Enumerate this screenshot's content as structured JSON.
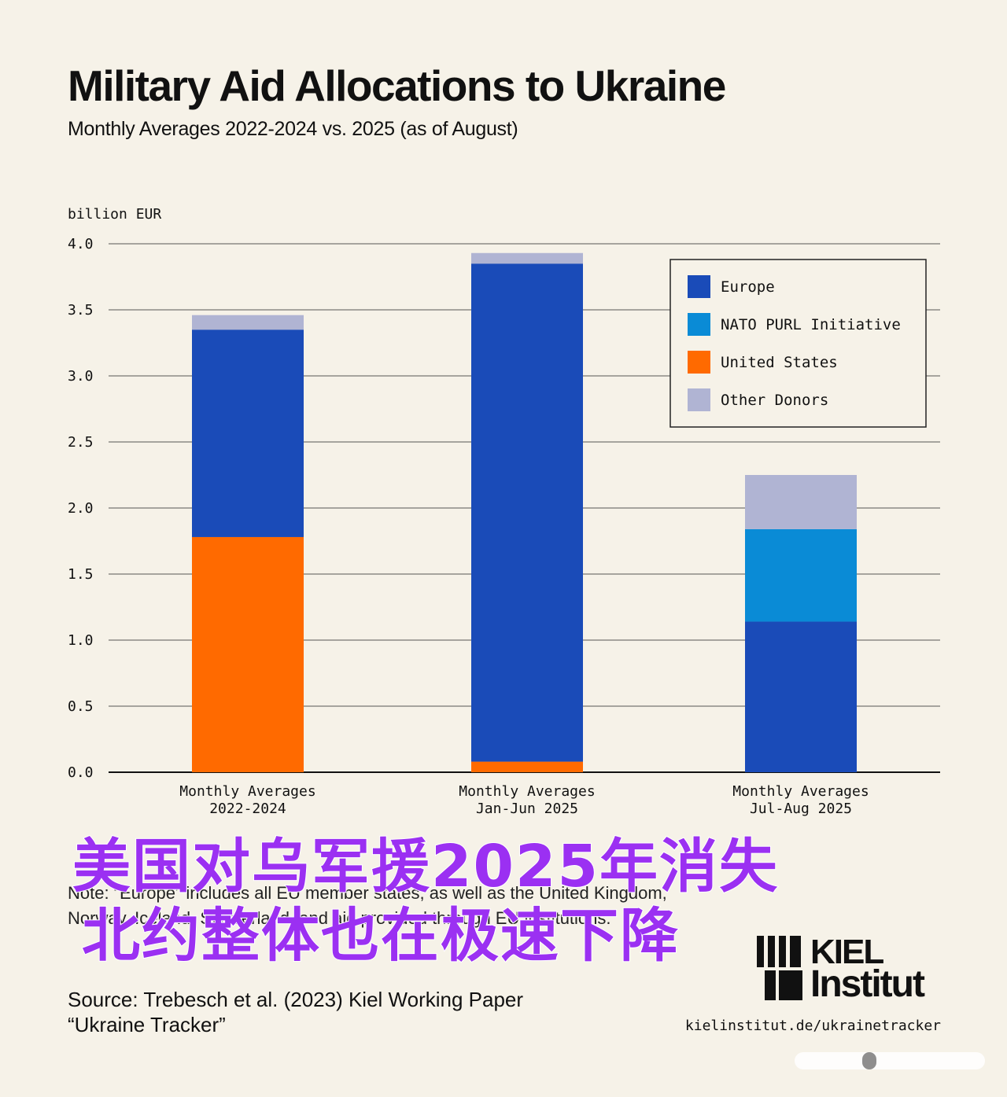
{
  "title": "Military Aid Allocations to Ukraine",
  "subtitle": "Monthly Averages 2022-2024 vs. 2025 (as of August)",
  "overlay": {
    "line1": "美国对乌军援2025年消失",
    "line2": "北约整体也在极速下降"
  },
  "note": "Note: “Europe” includes all EU member states, as well as the United Kingdom, Norway, Iceland, Switzerland, and aid provided through EU institutions.",
  "source": "Source: Trebesch et al. (2023) Kiel Working Paper “Ukraine Tracker”",
  "url": "kielinstitut.de/ukrainetracker",
  "logo": {
    "line1": "KIEL",
    "line2": "Institut"
  },
  "colors": {
    "Europe": "#1a4bb8",
    "NATO PURL Initiative": "#0a8bd6",
    "United States": "#ff6a00",
    "Other Donors": "#b0b4d3",
    "overlay_text": "#9b30f2",
    "background": "#f6f2e8"
  },
  "chart_data": {
    "type": "bar",
    "stacked": true,
    "ylabel": "billion EUR",
    "xlabel": "",
    "ylim": [
      0,
      4.0
    ],
    "yticks": [
      "0.0",
      "0.5",
      "1.0",
      "1.5",
      "2.0",
      "2.5",
      "3.0",
      "3.5",
      "4.0"
    ],
    "grid": true,
    "legend_position": "top-right",
    "categories": [
      [
        "Monthly Averages",
        "2022-2024"
      ],
      [
        "Monthly Averages",
        "Jan-Jun 2025"
      ],
      [
        "Monthly Averages",
        "Jul-Aug 2025"
      ]
    ],
    "series": [
      {
        "name": "United States",
        "values": [
          1.78,
          0.08,
          0.0
        ]
      },
      {
        "name": "Europe",
        "values": [
          1.57,
          3.77,
          1.14
        ]
      },
      {
        "name": "NATO PURL Initiative",
        "values": [
          0.0,
          0.0,
          0.7
        ]
      },
      {
        "name": "Other Donors",
        "values": [
          0.11,
          0.08,
          0.41
        ]
      }
    ],
    "legend_order": [
      "Europe",
      "NATO PURL Initiative",
      "United States",
      "Other Donors"
    ]
  }
}
